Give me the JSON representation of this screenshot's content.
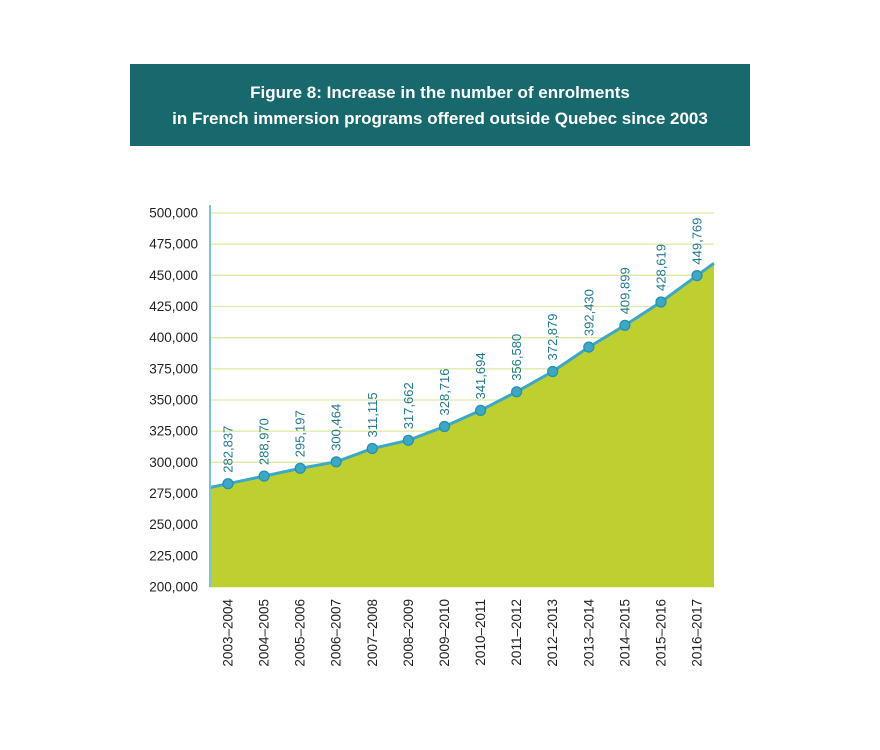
{
  "title": {
    "line1": "Figure 8: Increase in the number of enrolments",
    "line2": "in French immersion programs offered outside Quebec since 2003"
  },
  "colors": {
    "banner_bg": "#17696d",
    "banner_text": "#ffffff",
    "area_fill": "#bdd02f",
    "line": "#3aa8c6",
    "dot": "#3aa8c6",
    "dot_ring": "#2391ad",
    "grid": "#dfe9a6",
    "axis": "#79c3d4",
    "label_text": "#1f7a8c",
    "tick_text": "#231f20"
  },
  "chart_data": {
    "type": "area",
    "title": "Figure 8: Increase in the number of enrolments in French immersion programs offered outside Quebec since 2003",
    "xlabel": "",
    "ylabel": "",
    "grid": true,
    "legend": "none",
    "ylim": [
      200000,
      500000
    ],
    "ytick_step": 25000,
    "ytick_labels": [
      "200,000",
      "225,000",
      "250,000",
      "275,000",
      "300,000",
      "325,000",
      "350,000",
      "375,000",
      "400,000",
      "425,000",
      "450,000",
      "475,000",
      "500,000"
    ],
    "categories": [
      "2003–2004",
      "2004–2005",
      "2005–2006",
      "2006–2007",
      "2007–2008",
      "2008–2009",
      "2009–2010",
      "2010–2011",
      "2011–2012",
      "2012–2013",
      "2013–2014",
      "2014–2015",
      "2015–2016",
      "2016–2017"
    ],
    "values": [
      282837,
      288970,
      295197,
      300464,
      311115,
      317662,
      328716,
      341694,
      356580,
      372879,
      392430,
      409899,
      428619,
      449769
    ],
    "value_labels": [
      "282,837",
      "288,970",
      "295,197",
      "300,464",
      "311,115",
      "317,662",
      "328,716",
      "341,694",
      "356,580",
      "372,879",
      "392,430",
      "409,899",
      "428,619",
      "449,769"
    ]
  }
}
